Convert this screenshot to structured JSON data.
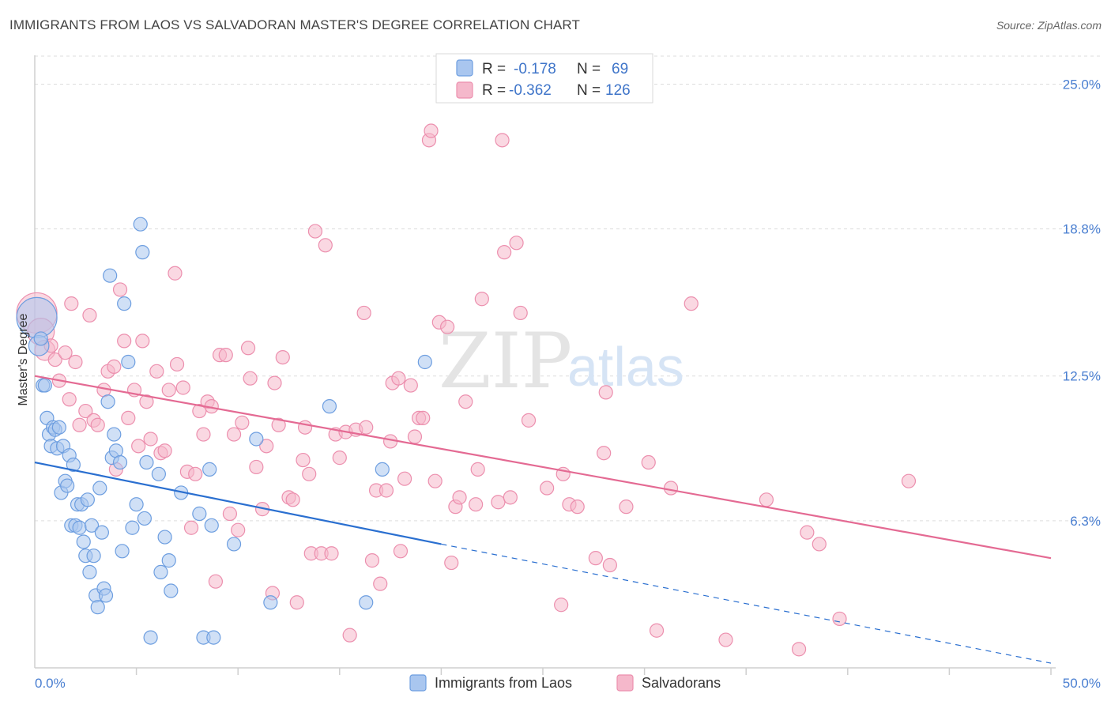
{
  "title": "IMMIGRANTS FROM LAOS VS SALVADORAN MASTER'S DEGREE CORRELATION CHART",
  "source": "Source: ZipAtlas.com",
  "watermark": {
    "zip": "ZIP",
    "atlas": "atlas"
  },
  "legend": {
    "r_label": "R =",
    "n_label": "N =",
    "series1_r": "-0.178",
    "series1_n": "69",
    "series2_r": "-0.362",
    "series2_n": "126"
  },
  "bottom_legend": {
    "series1": "Immigrants from Laos",
    "series2": "Salvadorans"
  },
  "colors": {
    "blue_fill": "#a9c6ef",
    "blue_stroke": "#6d9ee0",
    "blue_line": "#2a6fd0",
    "pink_fill": "#f5b8cb",
    "pink_stroke": "#ec8fae",
    "pink_line": "#e46a93",
    "tick_text": "#4a7fd1",
    "grid": "#dddddd"
  },
  "chart_data": {
    "type": "scatter",
    "title": "IMMIGRANTS FROM LAOS VS SALVADORAN MASTER'S DEGREE CORRELATION CHART",
    "xlabel": "",
    "ylabel": "Master's Degree",
    "xlim": [
      0,
      50
    ],
    "ylim": [
      0,
      26.2
    ],
    "x_tick_labels": [
      "0.0%",
      "50.0%"
    ],
    "y_ticks": [
      6.3,
      12.5,
      18.8,
      25.0
    ],
    "y_tick_labels": [
      "6.3%",
      "12.5%",
      "18.8%",
      "25.0%"
    ],
    "grid": true,
    "series": [
      {
        "name": "Immigrants from Laos",
        "r": -0.178,
        "n": 69,
        "trend": {
          "x0": 0,
          "y0": 8.8,
          "x1": 20,
          "y1": 5.3,
          "dashed_to_x": 50,
          "dashed_to_y": 0.2
        },
        "points": [
          [
            0.1,
            15.0,
            3
          ],
          [
            0.2,
            13.8,
            1.5
          ],
          [
            0.3,
            14.1,
            1
          ],
          [
            0.4,
            12.1,
            1
          ],
          [
            0.5,
            12.1,
            1
          ],
          [
            0.6,
            10.7,
            1
          ],
          [
            0.7,
            10.0,
            1
          ],
          [
            0.8,
            9.5,
            1
          ],
          [
            0.9,
            10.3,
            1
          ],
          [
            1.0,
            10.2,
            1
          ],
          [
            1.1,
            9.4,
            1
          ],
          [
            1.2,
            10.3,
            1
          ],
          [
            1.3,
            7.5,
            1
          ],
          [
            1.4,
            9.5,
            1
          ],
          [
            1.5,
            8.0,
            1
          ],
          [
            1.6,
            7.8,
            1
          ],
          [
            1.7,
            9.1,
            1
          ],
          [
            1.8,
            6.1,
            1
          ],
          [
            1.9,
            8.7,
            1
          ],
          [
            2.0,
            6.1,
            1
          ],
          [
            2.1,
            7.0,
            1
          ],
          [
            2.2,
            6.0,
            1
          ],
          [
            2.3,
            7.0,
            1
          ],
          [
            2.4,
            5.4,
            1
          ],
          [
            2.5,
            4.8,
            1
          ],
          [
            2.6,
            7.2,
            1
          ],
          [
            2.7,
            4.1,
            1
          ],
          [
            2.8,
            6.1,
            1
          ],
          [
            2.9,
            4.8,
            1
          ],
          [
            3.0,
            3.1,
            1
          ],
          [
            3.1,
            2.6,
            1
          ],
          [
            3.2,
            7.7,
            1
          ],
          [
            3.3,
            5.8,
            1
          ],
          [
            3.4,
            3.4,
            1
          ],
          [
            3.5,
            3.1,
            1
          ],
          [
            3.6,
            11.4,
            1
          ],
          [
            3.7,
            16.8,
            1
          ],
          [
            3.8,
            9.0,
            1
          ],
          [
            3.9,
            10.0,
            1
          ],
          [
            4.0,
            9.3,
            1
          ],
          [
            4.2,
            8.8,
            1
          ],
          [
            4.3,
            5.0,
            1
          ],
          [
            4.4,
            15.6,
            1
          ],
          [
            4.6,
            13.1,
            1
          ],
          [
            4.8,
            6.0,
            1
          ],
          [
            5.0,
            7.0,
            1
          ],
          [
            5.2,
            19.0,
            1
          ],
          [
            5.3,
            17.8,
            1
          ],
          [
            5.4,
            6.4,
            1
          ],
          [
            5.5,
            8.8,
            1
          ],
          [
            5.7,
            1.3,
            1
          ],
          [
            6.1,
            8.3,
            1
          ],
          [
            6.2,
            4.1,
            1
          ],
          [
            6.4,
            5.6,
            1
          ],
          [
            6.6,
            4.6,
            1
          ],
          [
            6.7,
            3.3,
            1
          ],
          [
            7.2,
            7.5,
            1
          ],
          [
            8.1,
            6.6,
            1
          ],
          [
            8.3,
            1.3,
            1
          ],
          [
            8.6,
            8.5,
            1
          ],
          [
            8.7,
            6.1,
            1
          ],
          [
            8.8,
            1.3,
            1
          ],
          [
            9.8,
            5.3,
            1
          ],
          [
            10.9,
            9.8,
            1
          ],
          [
            11.6,
            2.8,
            1
          ],
          [
            14.5,
            11.2,
            1
          ],
          [
            16.3,
            2.8,
            1
          ],
          [
            17.1,
            8.5,
            1
          ],
          [
            19.2,
            13.1,
            1
          ]
        ]
      },
      {
        "name": "Salvadorans",
        "r": -0.362,
        "n": 126,
        "trend": {
          "x0": 0,
          "y0": 12.5,
          "x1": 50,
          "y1": 4.7
        },
        "points": [
          [
            0.1,
            15.2,
            3
          ],
          [
            0.3,
            14.4,
            2
          ],
          [
            0.5,
            13.6,
            1.5
          ],
          [
            0.8,
            13.8,
            1
          ],
          [
            1.0,
            13.2,
            1
          ],
          [
            1.2,
            12.3,
            1
          ],
          [
            1.5,
            13.5,
            1
          ],
          [
            1.7,
            11.5,
            1
          ],
          [
            1.8,
            15.6,
            1
          ],
          [
            2.0,
            13.1,
            1
          ],
          [
            2.2,
            10.4,
            1
          ],
          [
            2.5,
            11.0,
            1
          ],
          [
            2.7,
            15.1,
            1
          ],
          [
            2.9,
            10.6,
            1
          ],
          [
            3.1,
            10.4,
            1
          ],
          [
            3.4,
            11.9,
            1
          ],
          [
            3.6,
            12.7,
            1
          ],
          [
            3.9,
            12.9,
            1
          ],
          [
            4.0,
            8.5,
            1
          ],
          [
            4.2,
            16.2,
            1
          ],
          [
            4.4,
            14.0,
            1
          ],
          [
            4.6,
            10.7,
            1
          ],
          [
            4.9,
            11.9,
            1
          ],
          [
            5.1,
            9.5,
            1
          ],
          [
            5.3,
            14.0,
            1
          ],
          [
            5.5,
            11.4,
            1
          ],
          [
            5.7,
            9.8,
            1
          ],
          [
            6.0,
            12.7,
            1
          ],
          [
            6.2,
            9.2,
            1
          ],
          [
            6.4,
            9.3,
            1
          ],
          [
            6.6,
            11.9,
            1
          ],
          [
            6.9,
            16.9,
            1
          ],
          [
            7.0,
            13.0,
            1
          ],
          [
            7.3,
            12.0,
            1
          ],
          [
            7.5,
            8.4,
            1
          ],
          [
            7.7,
            6.0,
            1
          ],
          [
            7.9,
            8.3,
            1
          ],
          [
            8.1,
            11.0,
            1
          ],
          [
            8.3,
            10.0,
            1
          ],
          [
            8.5,
            11.4,
            1
          ],
          [
            8.7,
            11.2,
            1
          ],
          [
            8.9,
            3.7,
            1
          ],
          [
            9.1,
            13.4,
            1
          ],
          [
            9.4,
            13.4,
            1
          ],
          [
            9.6,
            6.6,
            1
          ],
          [
            9.8,
            10.0,
            1
          ],
          [
            10.0,
            5.9,
            1
          ],
          [
            10.2,
            10.5,
            1
          ],
          [
            10.5,
            13.7,
            1
          ],
          [
            10.6,
            12.4,
            1
          ],
          [
            10.9,
            8.6,
            1
          ],
          [
            11.2,
            6.8,
            1
          ],
          [
            11.4,
            9.5,
            1
          ],
          [
            11.7,
            3.2,
            1
          ],
          [
            11.8,
            12.2,
            1
          ],
          [
            12.0,
            10.4,
            1
          ],
          [
            12.2,
            13.3,
            1
          ],
          [
            12.5,
            7.3,
            1
          ],
          [
            12.7,
            7.2,
            1
          ],
          [
            12.9,
            2.8,
            1
          ],
          [
            13.2,
            8.9,
            1
          ],
          [
            13.3,
            10.3,
            1
          ],
          [
            13.5,
            8.3,
            1
          ],
          [
            13.6,
            4.9,
            1
          ],
          [
            13.8,
            18.7,
            1
          ],
          [
            14.1,
            4.9,
            1
          ],
          [
            14.3,
            18.1,
            1
          ],
          [
            14.6,
            4.9,
            1
          ],
          [
            14.8,
            10.0,
            1
          ],
          [
            15.0,
            9.0,
            1
          ],
          [
            15.3,
            10.1,
            1
          ],
          [
            15.5,
            1.4,
            1
          ],
          [
            15.8,
            10.2,
            1
          ],
          [
            16.2,
            15.2,
            1
          ],
          [
            16.3,
            10.3,
            1
          ],
          [
            16.6,
            4.6,
            1
          ],
          [
            16.8,
            7.6,
            1
          ],
          [
            17.0,
            3.6,
            1
          ],
          [
            17.3,
            7.6,
            1
          ],
          [
            17.5,
            9.7,
            1
          ],
          [
            17.6,
            12.2,
            1
          ],
          [
            17.9,
            12.4,
            1
          ],
          [
            18.0,
            5.0,
            1
          ],
          [
            18.2,
            8.1,
            1
          ],
          [
            18.5,
            12.1,
            1
          ],
          [
            18.7,
            9.9,
            1
          ],
          [
            18.9,
            10.7,
            1
          ],
          [
            19.1,
            10.7,
            1
          ],
          [
            19.4,
            22.6,
            1
          ],
          [
            19.5,
            23.0,
            1
          ],
          [
            19.7,
            8.0,
            1
          ],
          [
            19.9,
            14.8,
            1
          ],
          [
            20.3,
            14.6,
            1
          ],
          [
            20.5,
            4.5,
            1
          ],
          [
            20.7,
            6.9,
            1
          ],
          [
            20.9,
            7.3,
            1
          ],
          [
            21.2,
            11.4,
            1
          ],
          [
            21.7,
            7.0,
            1
          ],
          [
            21.8,
            8.5,
            1
          ],
          [
            22.0,
            15.8,
            1
          ],
          [
            22.8,
            7.1,
            1
          ],
          [
            23.0,
            22.6,
            1
          ],
          [
            23.1,
            17.8,
            1
          ],
          [
            23.4,
            7.3,
            1
          ],
          [
            23.7,
            18.2,
            1
          ],
          [
            23.9,
            15.2,
            1
          ],
          [
            24.3,
            10.6,
            1
          ],
          [
            25.2,
            7.7,
            1
          ],
          [
            25.9,
            2.7,
            1
          ],
          [
            26.0,
            8.3,
            1
          ],
          [
            26.3,
            7.0,
            1
          ],
          [
            26.7,
            6.9,
            1
          ],
          [
            27.6,
            4.7,
            1
          ],
          [
            28.0,
            9.2,
            1
          ],
          [
            28.1,
            11.8,
            1
          ],
          [
            28.3,
            4.4,
            1
          ],
          [
            29.1,
            6.9,
            1
          ],
          [
            30.2,
            8.8,
            1
          ],
          [
            30.6,
            1.6,
            1
          ],
          [
            31.3,
            7.7,
            1
          ],
          [
            32.3,
            15.6,
            1
          ],
          [
            34.0,
            1.2,
            1
          ],
          [
            36.0,
            7.2,
            1
          ],
          [
            37.6,
            0.8,
            1
          ],
          [
            38.0,
            5.8,
            1
          ],
          [
            38.6,
            5.3,
            1
          ],
          [
            39.6,
            2.1,
            1
          ],
          [
            43.0,
            8.0,
            1
          ]
        ]
      }
    ]
  }
}
